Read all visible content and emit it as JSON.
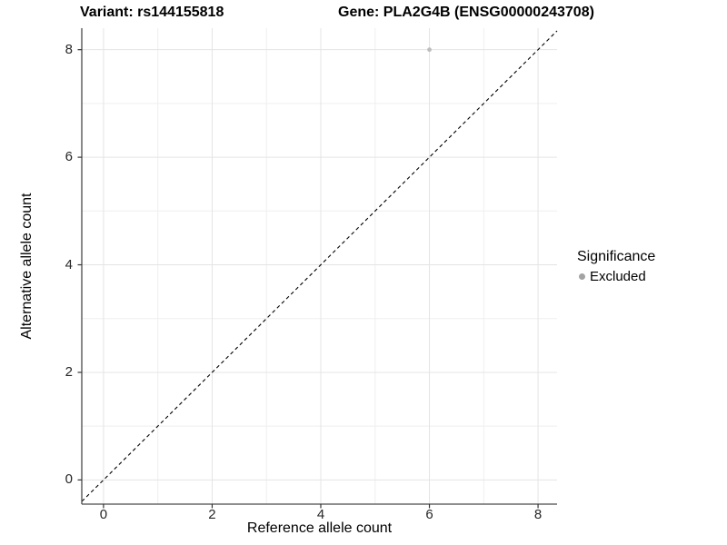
{
  "titles": {
    "variant": "Variant: rs144155818",
    "gene": "Gene: PLA2G4B (ENSG00000243708)"
  },
  "legend": {
    "title": "Significance",
    "items": [
      {
        "label": "Excluded",
        "color": "#a3a3a3"
      }
    ]
  },
  "chart_data": {
    "type": "scatter",
    "title": "Variant: rs144155818 | Gene: PLA2G4B (ENSG00000243708)",
    "xlabel": "Reference allele count",
    "ylabel": "Alternative allele count",
    "xlim": [
      -0.4,
      8.35
    ],
    "ylim": [
      -0.45,
      8.4
    ],
    "x_ticks": [
      0,
      2,
      4,
      6,
      8
    ],
    "y_ticks": [
      0,
      2,
      4,
      6,
      8
    ],
    "minor_gridlines_at": [
      1,
      3,
      5,
      7
    ],
    "grid": true,
    "legend_position": "right",
    "series": [
      {
        "name": "Excluded",
        "color": "#bdbdbd",
        "points": [
          [
            6,
            8
          ]
        ]
      }
    ],
    "reference_line": {
      "type": "identity y=x",
      "style": "dashed",
      "color": "#000000"
    }
  },
  "colors": {
    "background": "#ffffff",
    "grid_major": "#e4e4e4",
    "grid_minor": "#efefef",
    "axis_line": "#4a4a4a",
    "tick_mark": "#333333",
    "text": "#000000",
    "point": "#bdbdbd",
    "legend_point": "#a3a3a3"
  }
}
